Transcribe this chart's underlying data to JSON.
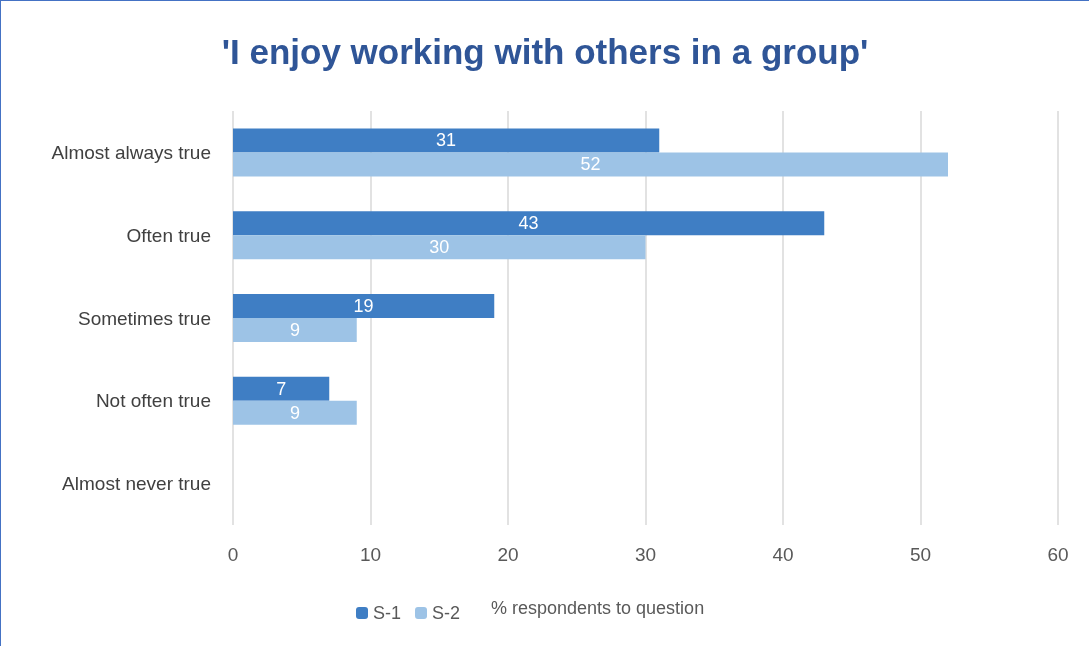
{
  "chart_data": {
    "type": "bar",
    "orientation": "horizontal",
    "title": "'I enjoy working with others in a group'",
    "xlabel": "% respondents to question",
    "categories": [
      "Almost always true",
      "Often true",
      "Sometimes true",
      "Not often true",
      "Almost never true"
    ],
    "series": [
      {
        "name": "S-1",
        "color": "#3f7ec4",
        "values": [
          31,
          43,
          19,
          7,
          null
        ]
      },
      {
        "name": "S-2",
        "color": "#9dc3e6",
        "values": [
          52,
          30,
          9,
          9,
          null
        ]
      }
    ],
    "xlim": [
      0,
      60
    ],
    "xticks": [
      0,
      10,
      20,
      30,
      40,
      50,
      60
    ],
    "grid": "x",
    "legend": "bottom",
    "data_labels": true
  }
}
